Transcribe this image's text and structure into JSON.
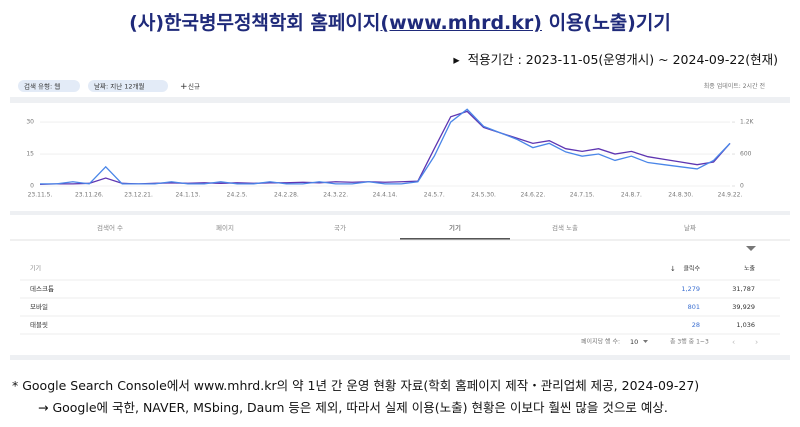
{
  "header": {
    "title_parts": [
      "(사)한국병무정책학회  홈페이지",
      "(www.mhrd.kr)",
      " 이용(노출)기기"
    ],
    "period": "적용기간 : 2023-11-05(운영개시) ~ 2024-09-22(현재)"
  },
  "toolbar": {
    "filters": [
      "검색 유형: 웹",
      "날짜: 지난 12개월"
    ],
    "new": "신규",
    "updated": "최종 업데이트: 2시간 전"
  },
  "chart_data": {
    "type": "line",
    "categories": [
      "23.11.5.",
      null,
      null,
      "23.11.26.",
      null,
      null,
      "23.12.21.",
      null,
      null,
      "24.1.13.",
      null,
      null,
      "24.2.5.",
      null,
      null,
      "24.2.28.",
      null,
      null,
      "24.3.22.",
      null,
      null,
      "24.4.14.",
      null,
      null,
      "24.5.7.",
      null,
      null,
      "24.5.30.",
      null,
      null,
      "24.6.22.",
      null,
      null,
      "24.7.15.",
      null,
      null,
      "24.8.7.",
      null,
      null,
      "24.8.30.",
      null,
      null,
      "24.9.22."
    ],
    "series": [
      {
        "name": "클릭수",
        "color": "#4a86e8",
        "values": [
          1,
          1,
          2,
          1,
          9,
          1,
          1,
          1,
          2,
          1,
          1,
          2,
          1,
          1,
          2,
          1,
          1,
          2,
          1,
          1,
          2,
          1,
          1,
          2,
          14,
          30,
          36,
          28,
          25,
          22,
          18,
          20,
          16,
          14,
          15,
          12,
          14,
          11,
          10,
          9,
          8,
          12,
          20
        ]
      },
      {
        "name": "노출",
        "color": "#5e35b1",
        "axis": "y2",
        "values": [
          30,
          40,
          40,
          50,
          150,
          50,
          40,
          50,
          60,
          50,
          60,
          50,
          60,
          50,
          60,
          60,
          70,
          60,
          80,
          70,
          80,
          70,
          80,
          90,
          700,
          1300,
          1400,
          1100,
          1000,
          900,
          800,
          850,
          700,
          650,
          700,
          600,
          650,
          550,
          500,
          450,
          400,
          450,
          800
        ]
      }
    ],
    "ylim": [
      0,
      38
    ],
    "yticks": [
      0,
      15,
      30
    ],
    "y2lim": [
      0,
      1520
    ],
    "y2ticks": [
      0,
      600,
      {
        "value": 1200,
        "label": "1.2K"
      }
    ],
    "grid": true
  },
  "tabs": {
    "items": [
      "검색어 수",
      "페이지",
      "국가",
      "기기",
      "검색 노출",
      "날짜"
    ],
    "active": 3
  },
  "table": {
    "columns": [
      "기기",
      "클릭수",
      "노출"
    ],
    "rows": [
      [
        "데스크톱",
        "1,279",
        "31,787"
      ],
      [
        "모바일",
        "801",
        "39,929"
      ],
      [
        "태블릿",
        "28",
        "1,036"
      ]
    ],
    "footer": {
      "rows_per_page": "페이지당 행 수:",
      "page_size": "10",
      "range": "총 3행 중 1~3"
    }
  },
  "notes": [
    "* Google Search Console에서 www.mhrd.kr의 약 1년 간 운영 현황 자료(학회 홈페이지 제작・관리업체 제공, 2024-09-27)",
    "→ Google에 국한, NAVER, MSbing, Daum 등은 제외, 따라서 실제 이용(노출) 현황은 이보다 훨씬 많을 것으로 예상."
  ]
}
